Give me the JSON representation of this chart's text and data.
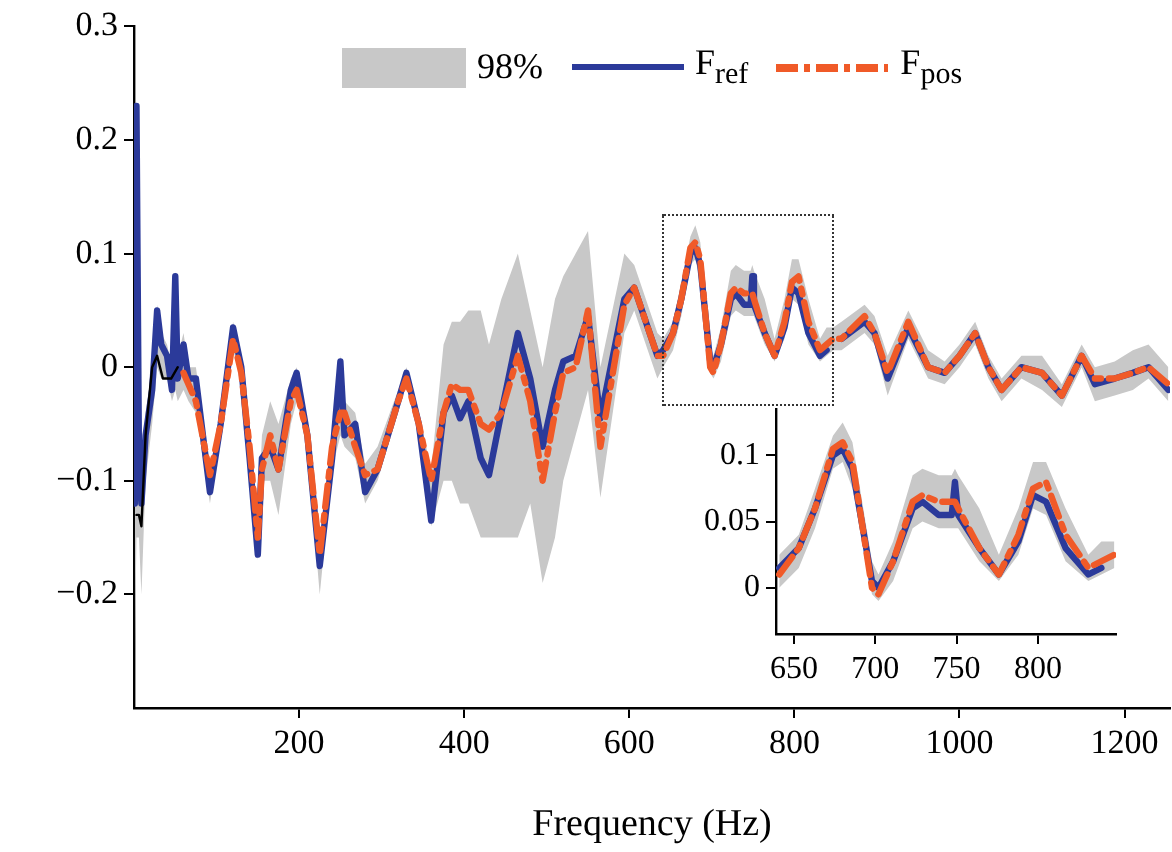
{
  "chart_data": [
    {
      "type": "line",
      "xlabel": "Frequency (Hz)",
      "legend": "top",
      "x": [
        1,
        3,
        6,
        9,
        14,
        22,
        28,
        33,
        40,
        46,
        50,
        53,
        60,
        66,
        75,
        92,
        105,
        120,
        130,
        140,
        150,
        155,
        165,
        175,
        190,
        197,
        210,
        225,
        240,
        250,
        255,
        268,
        280,
        295,
        320,
        330,
        345,
        360,
        375,
        385,
        395,
        405,
        420,
        430,
        445,
        465,
        480,
        495,
        510,
        520,
        535,
        550,
        565,
        594,
        606,
        634,
        641,
        653,
        663,
        674,
        680,
        686,
        698,
        702,
        711,
        723,
        729,
        739,
        747,
        749,
        751,
        764,
        776,
        788,
        797,
        805,
        817,
        831,
        839,
        847,
        857,
        885,
        897,
        913,
        938,
        962,
        982,
        1000,
        1019,
        1035,
        1051,
        1075,
        1100,
        1124,
        1148,
        1164,
        1188,
        1210,
        1229,
        1253
      ],
      "xlim": [
        0,
        1255
      ],
      "xticks": [
        200,
        400,
        600,
        800,
        1000,
        1200
      ],
      "ylim": [
        -0.3,
        0.3
      ],
      "yticks": [
        {
          "value": -0.2,
          "label": "−0.2"
        },
        {
          "value": -0.1,
          "label": "−0.1"
        },
        0,
        0.1,
        0.2,
        0.3
      ],
      "series": [
        {
          "name": "98%",
          "color": "#c8c8c8",
          "values": [
            null,
            null,
            null,
            null,
            null,
            null,
            null,
            null,
            null,
            null,
            null,
            null,
            null,
            null,
            null,
            null,
            null,
            null,
            null,
            null,
            null,
            null,
            null,
            null,
            null,
            null,
            null,
            null,
            null,
            null,
            null,
            null,
            null,
            null,
            null,
            null,
            null,
            null,
            null,
            null,
            null,
            null,
            null,
            null,
            null,
            null,
            null,
            null,
            null,
            null,
            null,
            null,
            null,
            null,
            null,
            null,
            null,
            null,
            null,
            null,
            null,
            null,
            null,
            null,
            null,
            null,
            null,
            null,
            null,
            null,
            null,
            null,
            null,
            null,
            null,
            null,
            null,
            null,
            null,
            null,
            null,
            null,
            null,
            null,
            null,
            null,
            null,
            null,
            null,
            null,
            null,
            null,
            null,
            null,
            null,
            null,
            null,
            null,
            null,
            null
          ],
          "lower": [
            -0.25,
            -0.15,
            -0.15,
            -0.2,
            -0.1,
            -0.05,
            0.0,
            -0.01,
            -0.01,
            -0.03,
            -0.02,
            -0.03,
            -0.02,
            -0.03,
            -0.04,
            -0.12,
            -0.06,
            0.015,
            -0.01,
            -0.09,
            -0.17,
            -0.1,
            -0.1,
            -0.13,
            -0.05,
            -0.03,
            -0.07,
            -0.2,
            -0.09,
            -0.06,
            -0.07,
            -0.08,
            -0.12,
            -0.1,
            -0.04,
            -0.015,
            -0.06,
            -0.14,
            -0.1,
            -0.1,
            -0.12,
            -0.12,
            -0.15,
            -0.15,
            -0.15,
            -0.15,
            -0.12,
            -0.19,
            -0.15,
            -0.1,
            -0.06,
            -0.02,
            -0.115,
            0.03,
            0.05,
            -0.01,
            0.0,
            0.015,
            0.045,
            0.09,
            0.095,
            0.075,
            -0.005,
            -0.01,
            0.005,
            0.045,
            0.05,
            0.045,
            0.045,
            0.045,
            0.045,
            0.02,
            0.005,
            0.025,
            0.06,
            0.055,
            0.02,
            0.005,
            0.01,
            0.015,
            0.015,
            0.03,
            0.02,
            -0.025,
            0.025,
            -0.01,
            -0.015,
            0.0,
            0.02,
            -0.01,
            -0.03,
            -0.01,
            -0.02,
            -0.035,
            0.0,
            -0.03,
            -0.025,
            -0.02,
            -0.01,
            -0.03
          ],
          "upper": [
            -0.08,
            0.23,
            -0.06,
            -0.1,
            -0.04,
            0.0,
            0.055,
            0.03,
            0.02,
            0.0,
            0.085,
            0.01,
            0.03,
            0.0,
            0.0,
            -0.09,
            -0.04,
            0.04,
            0.01,
            -0.06,
            -0.14,
            -0.06,
            -0.03,
            -0.05,
            -0.01,
            0.0,
            -0.05,
            -0.155,
            -0.06,
            0.01,
            -0.03,
            -0.04,
            -0.085,
            -0.07,
            -0.02,
            0.0,
            -0.04,
            -0.09,
            0.02,
            0.04,
            0.04,
            0.05,
            0.05,
            0.02,
            0.06,
            0.1,
            0.05,
            0.0,
            0.06,
            0.08,
            0.1,
            0.12,
            0.0,
            0.1,
            0.09,
            0.03,
            0.025,
            0.04,
            0.075,
            0.115,
            0.125,
            0.11,
            0.02,
            0.01,
            0.035,
            0.085,
            0.09,
            0.085,
            0.085,
            0.09,
            0.085,
            0.06,
            0.025,
            0.06,
            0.095,
            0.095,
            0.06,
            0.025,
            0.035,
            0.035,
            0.04,
            0.055,
            0.045,
            0.01,
            0.05,
            0.015,
            0.005,
            0.02,
            0.04,
            0.01,
            -0.01,
            0.01,
            0.01,
            -0.015,
            0.02,
            0.0,
            0.005,
            0.015,
            0.02,
            0.0
          ]
        },
        {
          "name": "F$_{ref}$",
          "color": "#2b3a9a",
          "line_style": "solid",
          "values": [
            -0.12,
            0.23,
            -0.08,
            -0.12,
            -0.06,
            -0.02,
            0.05,
            0.02,
            0.01,
            -0.02,
            0.08,
            -0.01,
            0.02,
            -0.01,
            -0.01,
            -0.11,
            -0.05,
            0.035,
            0,
            -0.08,
            -0.165,
            -0.08,
            -0.07,
            -0.09,
            -0.02,
            -0.005,
            -0.06,
            -0.175,
            -0.08,
            0.005,
            -0.06,
            -0.05,
            -0.11,
            -0.09,
            -0.03,
            -0.005,
            -0.05,
            -0.135,
            -0.04,
            -0.025,
            -0.045,
            -0.03,
            -0.08,
            -0.095,
            -0.04,
            0.03,
            -0.01,
            -0.07,
            -0.02,
            0.005,
            0.01,
            0.045,
            -0.045,
            0.06,
            0.07,
            0.01,
            0.015,
            0.03,
            0.06,
            0.1,
            0.105,
            0.09,
            0.005,
            0.0,
            0.02,
            0.06,
            0.065,
            0.055,
            0.055,
            0.08,
            0.055,
            0.03,
            0.01,
            0.035,
            0.07,
            0.065,
            0.03,
            0.01,
            0.015,
            null,
            0.025,
            0.04,
            0.03,
            -0.01,
            0.035,
            0.0,
            -0.005,
            0.01,
            0.03,
            0.0,
            -0.02,
            0.0,
            -0.005,
            -0.025,
            0.01,
            -0.015,
            -0.01,
            -0.005,
            0.0,
            -0.02
          ]
        },
        {
          "name": "F$_{pos}$",
          "color": "#f05a28",
          "line_style": "dashed",
          "values": [
            null,
            null,
            null,
            null,
            null,
            null,
            null,
            null,
            null,
            null,
            null,
            null,
            -0.005,
            -0.015,
            -0.03,
            -0.095,
            -0.05,
            0.025,
            -0.005,
            -0.07,
            -0.15,
            -0.09,
            -0.06,
            -0.09,
            -0.03,
            -0.02,
            -0.06,
            -0.165,
            -0.07,
            -0.04,
            -0.04,
            -0.07,
            -0.095,
            -0.09,
            -0.03,
            -0.01,
            -0.05,
            -0.1,
            -0.04,
            -0.015,
            -0.02,
            -0.02,
            -0.05,
            -0.055,
            -0.04,
            0.01,
            -0.03,
            -0.1,
            -0.04,
            -0.005,
            0.0,
            0.05,
            -0.07,
            0.055,
            0.07,
            0.01,
            0.01,
            0.03,
            0.06,
            0.105,
            0.11,
            0.095,
            0.0,
            -0.005,
            0.02,
            0.065,
            0.07,
            0.065,
            0.065,
            0.065,
            0.06,
            0.03,
            0.01,
            0.04,
            0.075,
            0.08,
            0.04,
            0.015,
            0.02,
            0.025,
            0.025,
            0.045,
            0.03,
            -0.005,
            0.04,
            0.0,
            -0.005,
            0.01,
            0.03,
            0.0,
            -0.02,
            0.0,
            -0.005,
            -0.025,
            0.01,
            -0.01,
            -0.01,
            -0.005,
            0.0,
            -0.015
          ]
        },
        {
          "color": "#000000",
          "line_style": "solid",
          "x": [
            3,
            6,
            9,
            14,
            22,
            28,
            35,
            45,
            53
          ],
          "values": [
            -0.13,
            -0.13,
            -0.14,
            -0.06,
            0.0,
            0.01,
            -0.01,
            -0.01,
            0.0
          ]
        }
      ]
    },
    {
      "type": "line",
      "x": [
        641,
        653,
        663,
        674,
        680,
        686,
        698,
        702,
        711,
        723,
        729,
        739,
        747,
        749,
        751,
        764,
        776,
        788,
        797,
        805,
        817,
        831,
        839,
        847
      ],
      "xlim": [
        639,
        848
      ],
      "xticks": [
        650,
        700,
        750,
        800
      ],
      "ylim": [
        -0.035,
        0.135
      ],
      "yticks": [
        0,
        0.05,
        0.1
      ],
      "series": [
        {
          "color": "#c8c8c8",
          "values": [
            null,
            null,
            null,
            null,
            null,
            null,
            null,
            null,
            null,
            null,
            null,
            null,
            null,
            null,
            null,
            null,
            null,
            null,
            null,
            null,
            null,
            null,
            null,
            null
          ],
          "lower": [
            0.0,
            0.015,
            0.045,
            0.09,
            0.095,
            0.075,
            -0.005,
            -0.01,
            0.005,
            0.045,
            0.05,
            0.045,
            0.045,
            0.045,
            0.045,
            0.02,
            0.005,
            0.025,
            0.06,
            0.055,
            0.02,
            0.005,
            0.01,
            0.015
          ],
          "upper": [
            0.025,
            0.04,
            0.075,
            0.115,
            0.125,
            0.11,
            0.02,
            0.01,
            0.035,
            0.085,
            0.09,
            0.085,
            0.085,
            0.09,
            0.085,
            0.06,
            0.025,
            0.06,
            0.095,
            0.095,
            0.06,
            0.025,
            0.035,
            0.035
          ]
        },
        {
          "color": "#2b3a9a",
          "line_style": "solid",
          "values": [
            0.015,
            0.03,
            0.06,
            0.1,
            0.105,
            0.09,
            0.005,
            0.0,
            0.02,
            0.06,
            0.065,
            0.055,
            0.055,
            0.08,
            0.055,
            0.03,
            0.01,
            0.035,
            0.07,
            0.065,
            0.03,
            0.01,
            0.015,
            null
          ]
        },
        {
          "color": "#f05a28",
          "line_style": "dashed",
          "values": [
            0.01,
            0.03,
            0.06,
            0.105,
            0.11,
            0.095,
            0.0,
            -0.005,
            0.02,
            0.065,
            0.07,
            0.065,
            0.065,
            0.065,
            0.06,
            0.03,
            0.01,
            0.04,
            0.075,
            0.08,
            0.04,
            0.015,
            0.02,
            0.025
          ]
        }
      ]
    }
  ]
}
